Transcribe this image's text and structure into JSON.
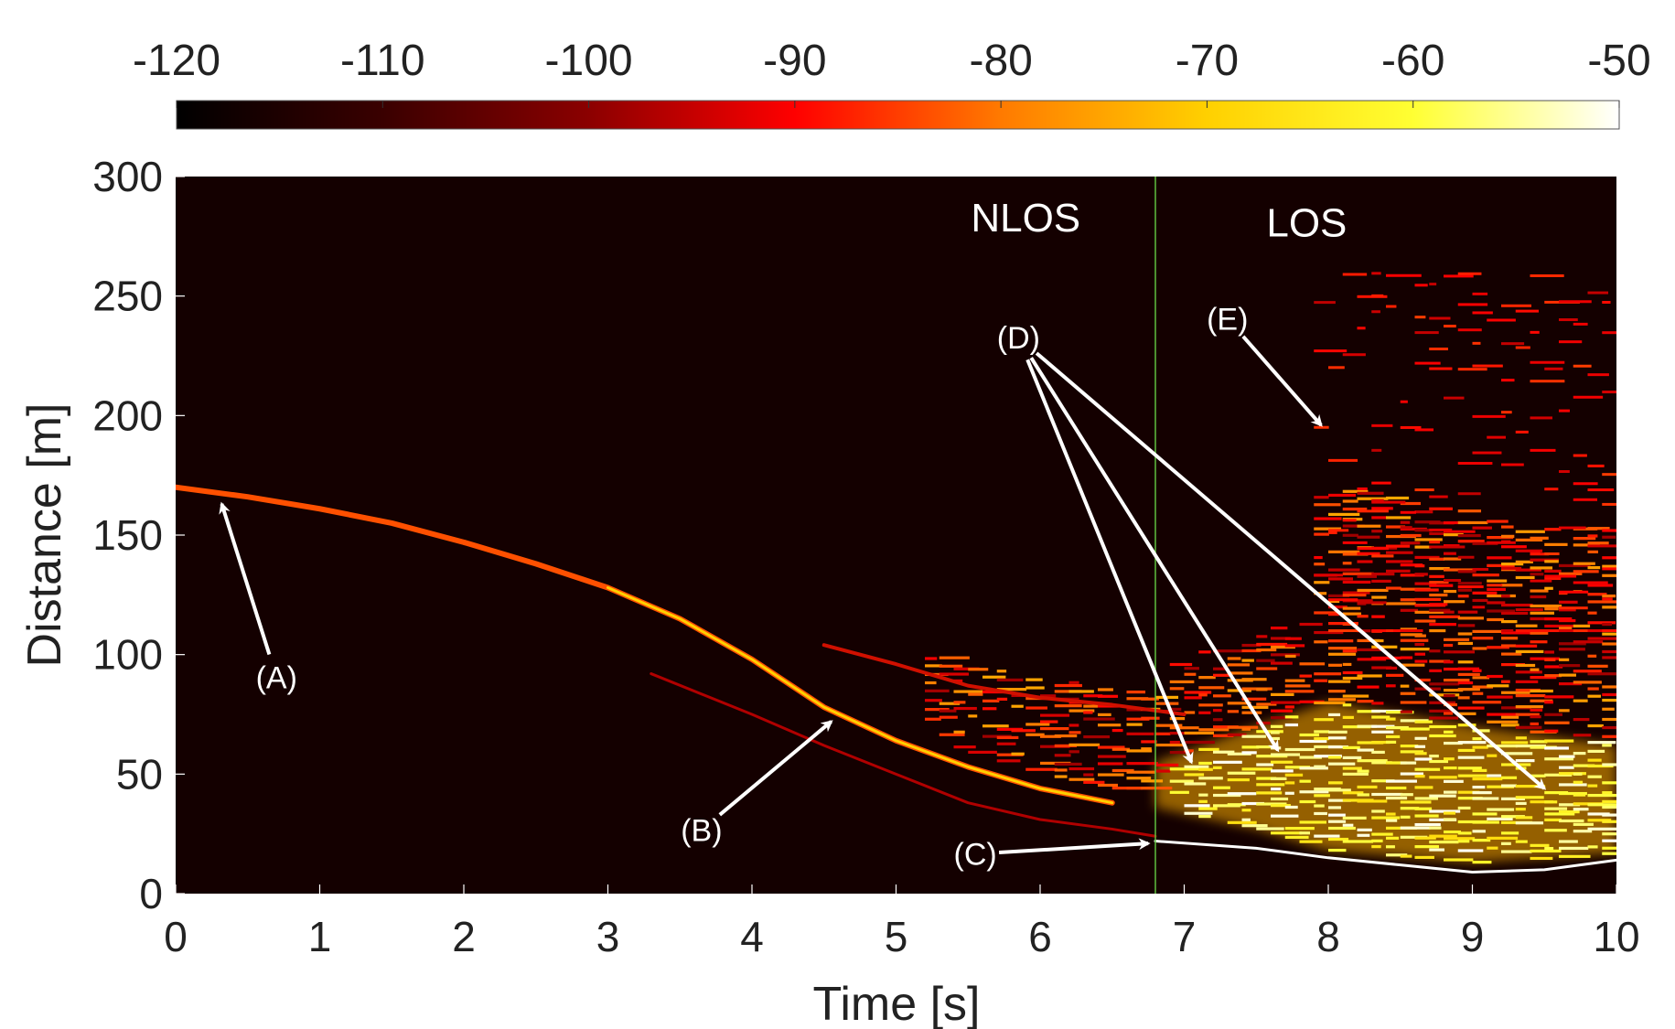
{
  "chart_data": {
    "type": "heatmap",
    "title": "",
    "xlabel": "Time [s]",
    "ylabel": "Distance [m]",
    "xlim": [
      0,
      10
    ],
    "ylim": [
      0,
      300
    ],
    "x_ticks": [
      "0",
      "1",
      "2",
      "3",
      "4",
      "5",
      "6",
      "7",
      "8",
      "9",
      "10"
    ],
    "y_ticks": [
      "0",
      "50",
      "100",
      "150",
      "200",
      "250",
      "300"
    ],
    "colorbar": {
      "range": [
        -120,
        -50
      ],
      "ticks": [
        "-120",
        "-110",
        "-100",
        "-90",
        "-80",
        "-70",
        "-60",
        "-50"
      ],
      "colormap": "hot",
      "stops": [
        "#000000",
        "#3a0000",
        "#8b0000",
        "#ff0000",
        "#ff7a00",
        "#ffd000",
        "#ffff33",
        "#ffffff"
      ]
    },
    "background_color": "#140000",
    "regions": {
      "boundary_time": 6.8,
      "nlos_label": "NLOS",
      "los_label": "LOS",
      "boundary_color": "#5fbf3f"
    },
    "traces": {
      "direct_path": [
        [
          0,
          170
        ],
        [
          0.5,
          166
        ],
        [
          1,
          161
        ],
        [
          1.5,
          155
        ],
        [
          2,
          147
        ],
        [
          2.5,
          138
        ],
        [
          3,
          128
        ],
        [
          3.5,
          115
        ],
        [
          4,
          98
        ],
        [
          4.5,
          78
        ],
        [
          5,
          64
        ],
        [
          5.5,
          53
        ],
        [
          6,
          44
        ],
        [
          6.5,
          38
        ]
      ],
      "weak_reflection": [
        [
          3.3,
          92
        ],
        [
          4,
          75
        ],
        [
          4.5,
          62
        ],
        [
          5,
          50
        ],
        [
          5.5,
          38
        ],
        [
          6,
          31
        ],
        [
          6.5,
          27
        ],
        [
          6.8,
          24
        ]
      ],
      "secondary_reflection": [
        [
          4.5,
          104
        ],
        [
          5,
          96
        ],
        [
          5.5,
          87
        ],
        [
          6,
          82
        ],
        [
          6.5,
          79
        ],
        [
          7,
          75
        ]
      ],
      "ground_reflection": [
        [
          6.8,
          22
        ],
        [
          7.5,
          19
        ],
        [
          8,
          15
        ],
        [
          8.5,
          12
        ],
        [
          9,
          9
        ],
        [
          9.5,
          10
        ],
        [
          10,
          14
        ]
      ],
      "strong_band_bottom": [
        [
          6.8,
          36
        ],
        [
          7.5,
          27
        ],
        [
          8,
          18
        ],
        [
          9,
          13
        ],
        [
          10,
          17
        ]
      ],
      "strong_band_top": [
        [
          6.8,
          55
        ],
        [
          7.5,
          70
        ],
        [
          8,
          80
        ],
        [
          9,
          70
        ],
        [
          10,
          62
        ]
      ]
    },
    "annotations": [
      {
        "label": "(A)",
        "text_at": [
          0.7,
          86
        ],
        "arrows_to": [
          [
            0.32,
            163
          ]
        ]
      },
      {
        "label": "(B)",
        "text_at": [
          3.65,
          22
        ],
        "arrows_to": [
          [
            4.55,
            72
          ]
        ]
      },
      {
        "label": "(C)",
        "text_at": [
          5.55,
          12
        ],
        "arrows_to": [
          [
            6.75,
            21
          ]
        ]
      },
      {
        "label": "(D)",
        "text_at": [
          5.85,
          228
        ],
        "arrows_to": [
          [
            7.05,
            55
          ],
          [
            7.65,
            60
          ],
          [
            9.5,
            44
          ]
        ]
      },
      {
        "label": "(E)",
        "text_at": [
          7.3,
          236
        ],
        "arrows_to": [
          [
            7.95,
            196
          ]
        ]
      }
    ],
    "annotation_color": "#ffffff",
    "text_color": "#ffffff"
  }
}
